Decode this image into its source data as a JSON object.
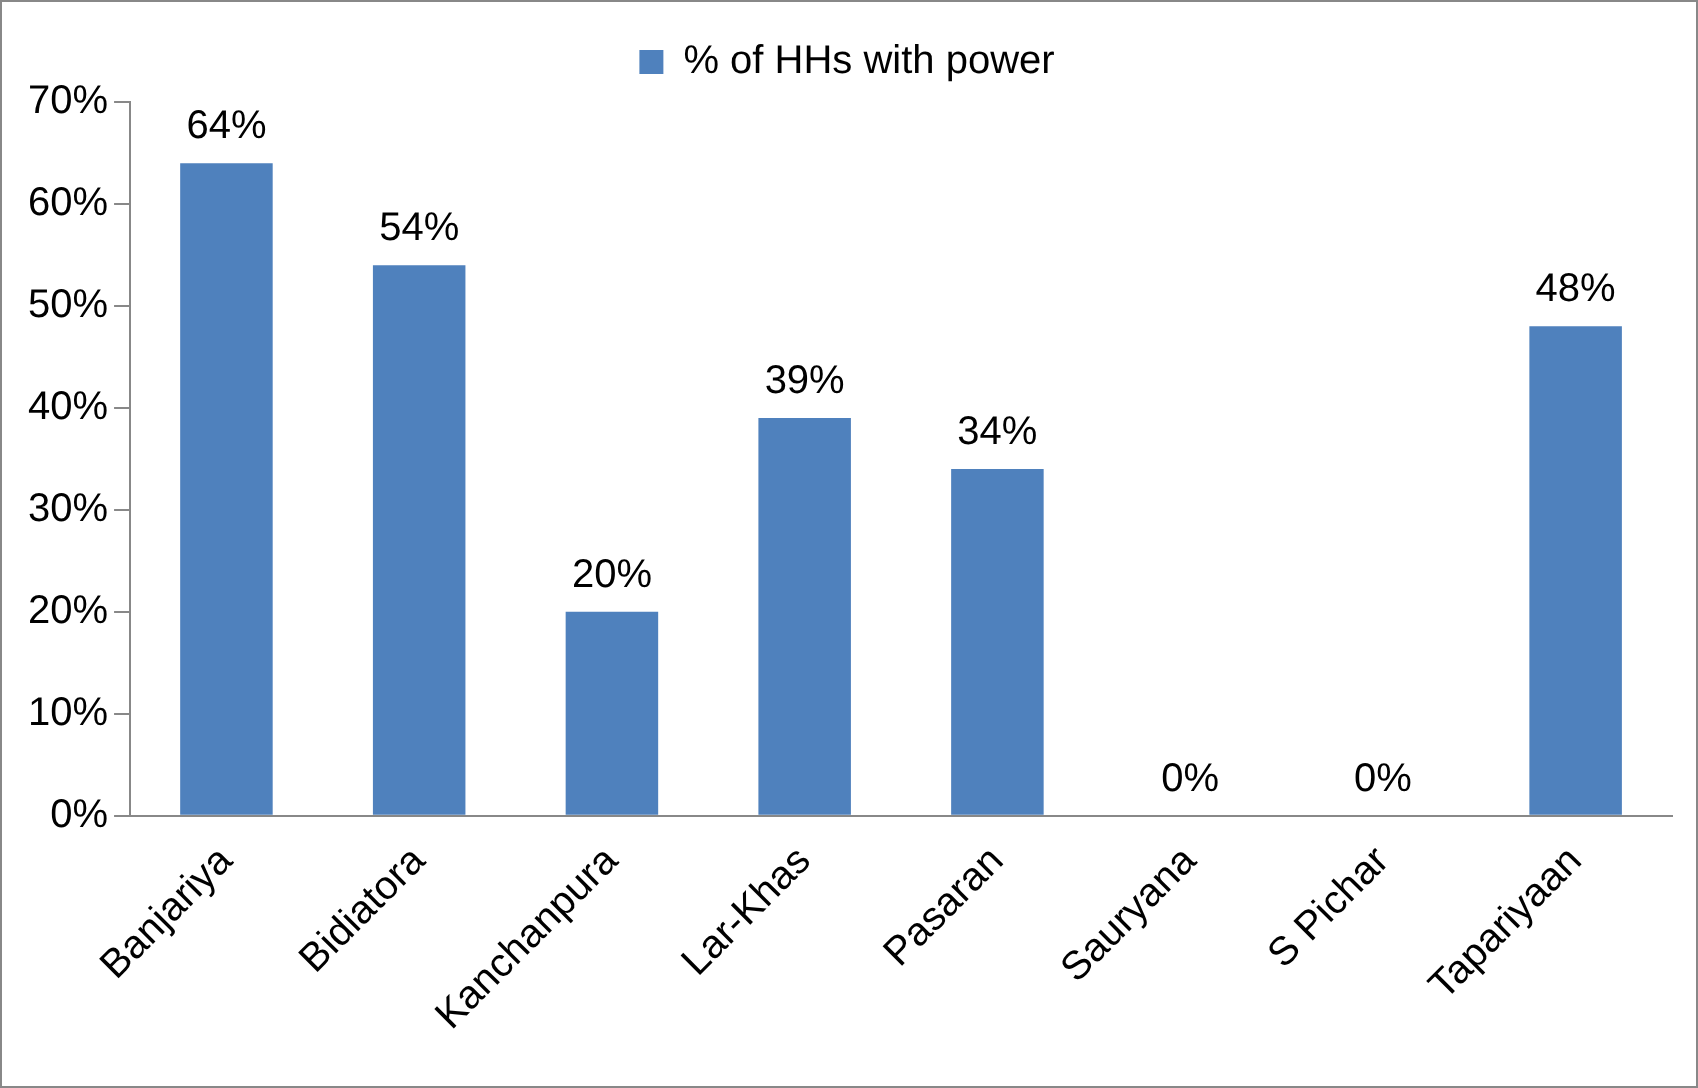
{
  "chart_data": {
    "type": "bar",
    "categories": [
      "Banjariya",
      "Bidiatora",
      "Kanchanpura",
      "Lar-Khas",
      "Pasaran",
      "Sauryana",
      "S Pichar",
      "Tapariyaan"
    ],
    "series": [
      {
        "name": "% of HHs with power",
        "color": "#4f81bd",
        "values": [
          64,
          54,
          20,
          39,
          34,
          0,
          0,
          48
        ],
        "value_labels": [
          "64%",
          "54%",
          "20%",
          "39%",
          "34%",
          "0%",
          "0%",
          "48%"
        ]
      }
    ],
    "ylim": [
      0,
      70
    ],
    "yticks": [
      {
        "value": 0,
        "label": "0%"
      },
      {
        "value": 10,
        "label": "10%"
      },
      {
        "value": 20,
        "label": "20%"
      },
      {
        "value": 30,
        "label": "30%"
      },
      {
        "value": 40,
        "label": "40%"
      },
      {
        "value": 50,
        "label": "50%"
      },
      {
        "value": 60,
        "label": "60%"
      },
      {
        "value": 70,
        "label": "70%"
      }
    ],
    "grid": false,
    "legend": "top"
  }
}
